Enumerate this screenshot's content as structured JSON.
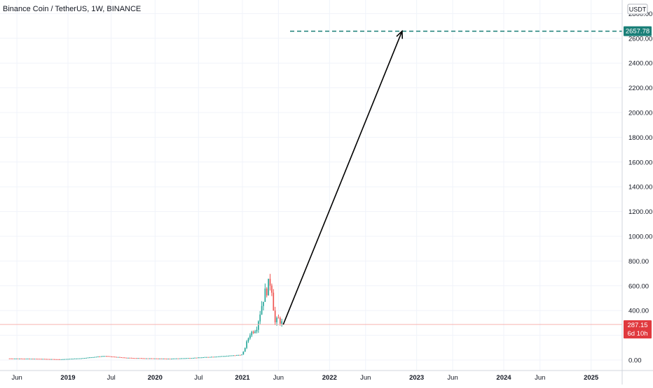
{
  "header": {
    "title": "Binance Coin / TetherUS, 1W, BINANCE"
  },
  "price_axis": {
    "currency": "USDT",
    "ticks": [
      "0.00",
      "200.00",
      "400.00",
      "600.00",
      "800.00",
      "1000.00",
      "1200.00",
      "1400.00",
      "1600.00",
      "1800.00",
      "2000.00",
      "2200.00",
      "2400.00",
      "2600.00",
      "2800.00"
    ]
  },
  "time_axis": {
    "ticks": [
      "Jun",
      "2019",
      "Jul",
      "2020",
      "Jul",
      "2021",
      "Jun",
      "2022",
      "Jun",
      "2023",
      "Jun",
      "2024",
      "Jun",
      "2025"
    ]
  },
  "labels": {
    "target_price": "2657.78",
    "current_price": "287.15",
    "countdown": "6d 10h"
  },
  "colors": {
    "up": "#26a69a",
    "down": "#ef5350",
    "target_line": "#1a7f78",
    "current_line": "#f7b3b1",
    "arrow": "#000000",
    "grid": "#f0f3fa",
    "axis_text": "#131722"
  },
  "chart_data": {
    "type": "candlestick",
    "symbol": "BNBUSDT",
    "interval": "1W",
    "exchange": "BINANCE",
    "ylim": [
      -50,
      2850
    ],
    "xlim": [
      "2018-05",
      "2025-10"
    ],
    "y_tick_labels": [
      "0.00",
      "200.00",
      "400.00",
      "600.00",
      "800.00",
      "1000.00",
      "1200.00",
      "1400.00",
      "1600.00",
      "1800.00",
      "2000.00",
      "2200.00",
      "2400.00",
      "2600.00",
      "2800.00"
    ],
    "x_tick_labels": [
      "Jun",
      "2019",
      "Jul",
      "2020",
      "Jul",
      "2021",
      "Jun",
      "2022",
      "Jun",
      "2023",
      "Jun",
      "2024",
      "Jun",
      "2025"
    ],
    "price_profile": [
      {
        "date": "2018-05",
        "close": 13
      },
      {
        "date": "2018-09",
        "close": 10
      },
      {
        "date": "2018-12",
        "close": 6
      },
      {
        "date": "2019-03",
        "close": 15
      },
      {
        "date": "2019-06",
        "close": 33
      },
      {
        "date": "2019-09",
        "close": 18
      },
      {
        "date": "2019-12",
        "close": 14
      },
      {
        "date": "2020-03",
        "close": 11
      },
      {
        "date": "2020-06",
        "close": 17
      },
      {
        "date": "2020-09",
        "close": 27
      },
      {
        "date": "2020-12",
        "close": 38
      },
      {
        "date": "2021-01",
        "close": 44
      },
      {
        "date": "2021-02",
        "close": 210
      },
      {
        "date": "2021-03",
        "close": 260
      },
      {
        "date": "2021-04",
        "close": 520
      },
      {
        "date": "2021-05",
        "close": 650
      },
      {
        "date": "2021-05-17",
        "close": 300
      },
      {
        "date": "2021-06",
        "close": 330
      },
      {
        "date": "2021-06-21",
        "close": 287.15
      }
    ],
    "drawings": {
      "target_level": 2657.78,
      "current_price": 287.15,
      "arrow": {
        "from": {
          "date": "2021-06-21",
          "price": 287.15
        },
        "to": {
          "date": "2022-11-01",
          "price": 2657.78
        }
      }
    }
  }
}
